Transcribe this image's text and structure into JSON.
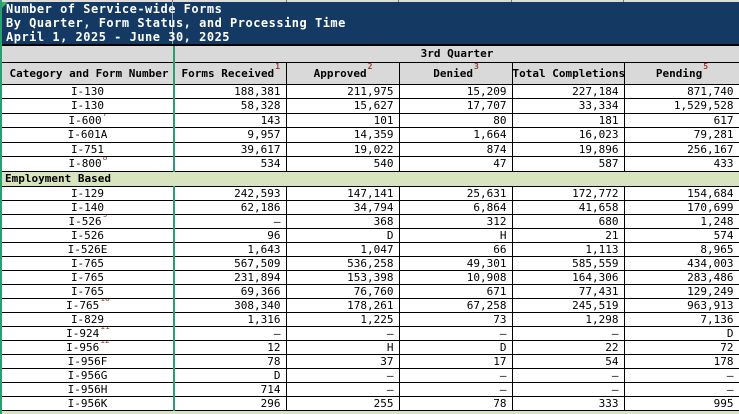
{
  "title": {
    "line1": "Number of Service-wide Forms",
    "line2": "By Quarter, Form Status, and Processing Time",
    "line3": "April 1, 2025 - June 30, 2025"
  },
  "table": {
    "quarter_header": "3rd Quarter",
    "columns": [
      {
        "label": "Category and Form Number",
        "sup": ""
      },
      {
        "label": "Forms Received",
        "sup": "1"
      },
      {
        "label": "Approved",
        "sup": "2"
      },
      {
        "label": "Denied",
        "sup": "3"
      },
      {
        "label": "Total Completions",
        "sup": "4"
      },
      {
        "label": "Pending",
        "sup": "5"
      }
    ],
    "sections": [
      {
        "show_header": false,
        "name": "",
        "rows": [
          {
            "form": "I-130",
            "sup": "",
            "values": [
              "188,381",
              "211,975",
              "15,209",
              "227,184",
              "871,740"
            ]
          },
          {
            "form": "I-130",
            "sup": "",
            "values": [
              "58,328",
              "15,627",
              "17,707",
              "33,334",
              "1,529,528"
            ]
          },
          {
            "form": "I-600",
            "sup": "7",
            "values": [
              "143",
              "101",
              "80",
              "181",
              "617"
            ]
          },
          {
            "form": "I-601A",
            "sup": "",
            "values": [
              "9,957",
              "14,359",
              "1,664",
              "16,023",
              "79,281"
            ]
          },
          {
            "form": "I-751",
            "sup": "",
            "values": [
              "39,617",
              "19,022",
              "874",
              "19,896",
              "256,167"
            ]
          },
          {
            "form": "I-800",
            "sup": "8",
            "values": [
              "534",
              "540",
              "47",
              "587",
              "433"
            ]
          }
        ]
      },
      {
        "show_header": true,
        "name": "Employment Based",
        "rows": [
          {
            "form": "I-129",
            "sup": "",
            "values": [
              "242,593",
              "147,141",
              "25,631",
              "172,772",
              "154,684"
            ]
          },
          {
            "form": "I-140",
            "sup": "",
            "values": [
              "62,186",
              "34,794",
              "6,864",
              "41,658",
              "170,699"
            ]
          },
          {
            "form": "I-526",
            "sup": "9",
            "values": [
              "–",
              "368",
              "312",
              "680",
              "1,248"
            ]
          },
          {
            "form": "I-526",
            "sup": "",
            "values": [
              "96",
              "D",
              "H",
              "21",
              "574"
            ]
          },
          {
            "form": "I-526E",
            "sup": "",
            "values": [
              "1,643",
              "1,047",
              "66",
              "1,113",
              "8,965"
            ]
          },
          {
            "form": "I-765",
            "sup": "",
            "values": [
              "567,509",
              "536,258",
              "49,301",
              "585,559",
              "434,003"
            ]
          },
          {
            "form": "I-765",
            "sup": "",
            "values": [
              "231,894",
              "153,398",
              "10,908",
              "164,306",
              "283,486"
            ]
          },
          {
            "form": "I-765",
            "sup": "",
            "values": [
              "69,366",
              "76,760",
              "671",
              "77,431",
              "129,249"
            ]
          },
          {
            "form": "I-765",
            "sup": "10",
            "values": [
              "308,340",
              "178,261",
              "67,258",
              "245,519",
              "963,913"
            ]
          },
          {
            "form": "I-829",
            "sup": "",
            "values": [
              "1,316",
              "1,225",
              "73",
              "1,298",
              "7,136"
            ]
          },
          {
            "form": "I-924",
            "sup": "11",
            "values": [
              "–",
              "–",
              "–",
              "–",
              "D"
            ]
          },
          {
            "form": "I-956",
            "sup": "12",
            "values": [
              "12",
              "H",
              "D",
              "22",
              "72"
            ]
          },
          {
            "form": "I-956F",
            "sup": "",
            "values": [
              "78",
              "37",
              "17",
              "54",
              "178"
            ]
          },
          {
            "form": "I-956G",
            "sup": "",
            "values": [
              "D",
              "–",
              "–",
              "–",
              "–"
            ]
          },
          {
            "form": "I-956H",
            "sup": "",
            "values": [
              "714",
              "–",
              "–",
              "–",
              "–"
            ]
          },
          {
            "form": "I-956K",
            "sup": "",
            "values": [
              "296",
              "255",
              "78",
              "333",
              "995"
            ]
          }
        ]
      },
      {
        "show_header": true,
        "name": "",
        "rows": []
      }
    ]
  },
  "colors": {
    "title_bg": "#143a63",
    "title_text": "#ffffff",
    "header_bg": "#d9d9d9",
    "section_bg": "#d7e4bd",
    "grid_green": "#2a9d71",
    "footnote_red": "#9e3b33"
  }
}
